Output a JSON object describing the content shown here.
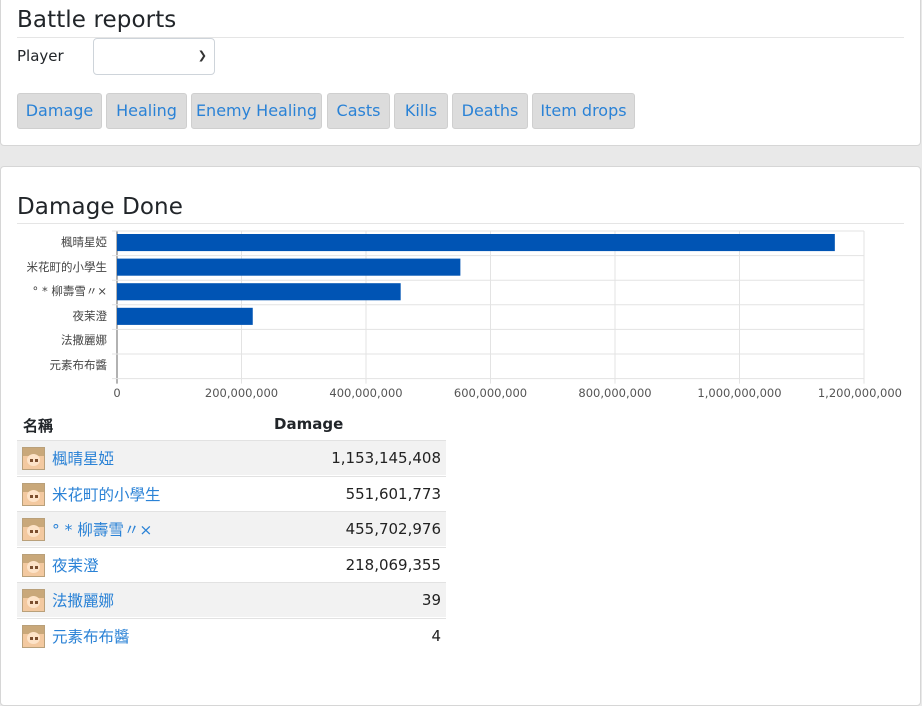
{
  "header": {
    "title": "Battle reports"
  },
  "player_filter": {
    "label": "Player",
    "selected": ""
  },
  "tabs": [
    {
      "label": "Damage"
    },
    {
      "label": "Healing"
    },
    {
      "label": "Enemy Healing"
    },
    {
      "label": "Casts"
    },
    {
      "label": "Kills"
    },
    {
      "label": "Deaths"
    },
    {
      "label": "Item drops"
    }
  ],
  "section": {
    "title": "Damage Done"
  },
  "colors": {
    "bar": "#0054b4",
    "link": "#2a82d6",
    "tab_bg": "#dcdcdc"
  },
  "chart_data": {
    "type": "bar",
    "orientation": "horizontal",
    "categories": [
      "楓晴星婭",
      "米花町的小學生",
      "° * 柳壽雪〃×",
      "夜茉澄",
      "法撒麗娜",
      "元素布布醬"
    ],
    "values": [
      1153145408,
      551601773,
      455702976,
      218069355,
      39,
      4
    ],
    "xlim": [
      0,
      1200000000
    ],
    "xticks": [
      "0",
      "200,000,000",
      "400,000,000",
      "600,000,000",
      "800,000,000",
      "1,000,000,000",
      "1,200,000,000"
    ],
    "grid": true,
    "legend": "none"
  },
  "table": {
    "headers": {
      "name": "名稱",
      "damage": "Damage"
    },
    "rows": [
      {
        "name": "楓晴星婭",
        "damage": "1,153,145,408",
        "avatar": "character-avatar-icon"
      },
      {
        "name": "米花町的小學生",
        "damage": "551,601,773",
        "avatar": "character-avatar-icon"
      },
      {
        "name": "° * 柳壽雪〃×",
        "damage": "455,702,976",
        "avatar": "character-avatar-icon"
      },
      {
        "name": "夜茉澄",
        "damage": "218,069,355",
        "avatar": "character-avatar-icon"
      },
      {
        "name": "法撒麗娜",
        "damage": "39",
        "avatar": "character-avatar-icon"
      },
      {
        "name": "元素布布醬",
        "damage": "4",
        "avatar": "character-avatar-icon"
      }
    ]
  }
}
